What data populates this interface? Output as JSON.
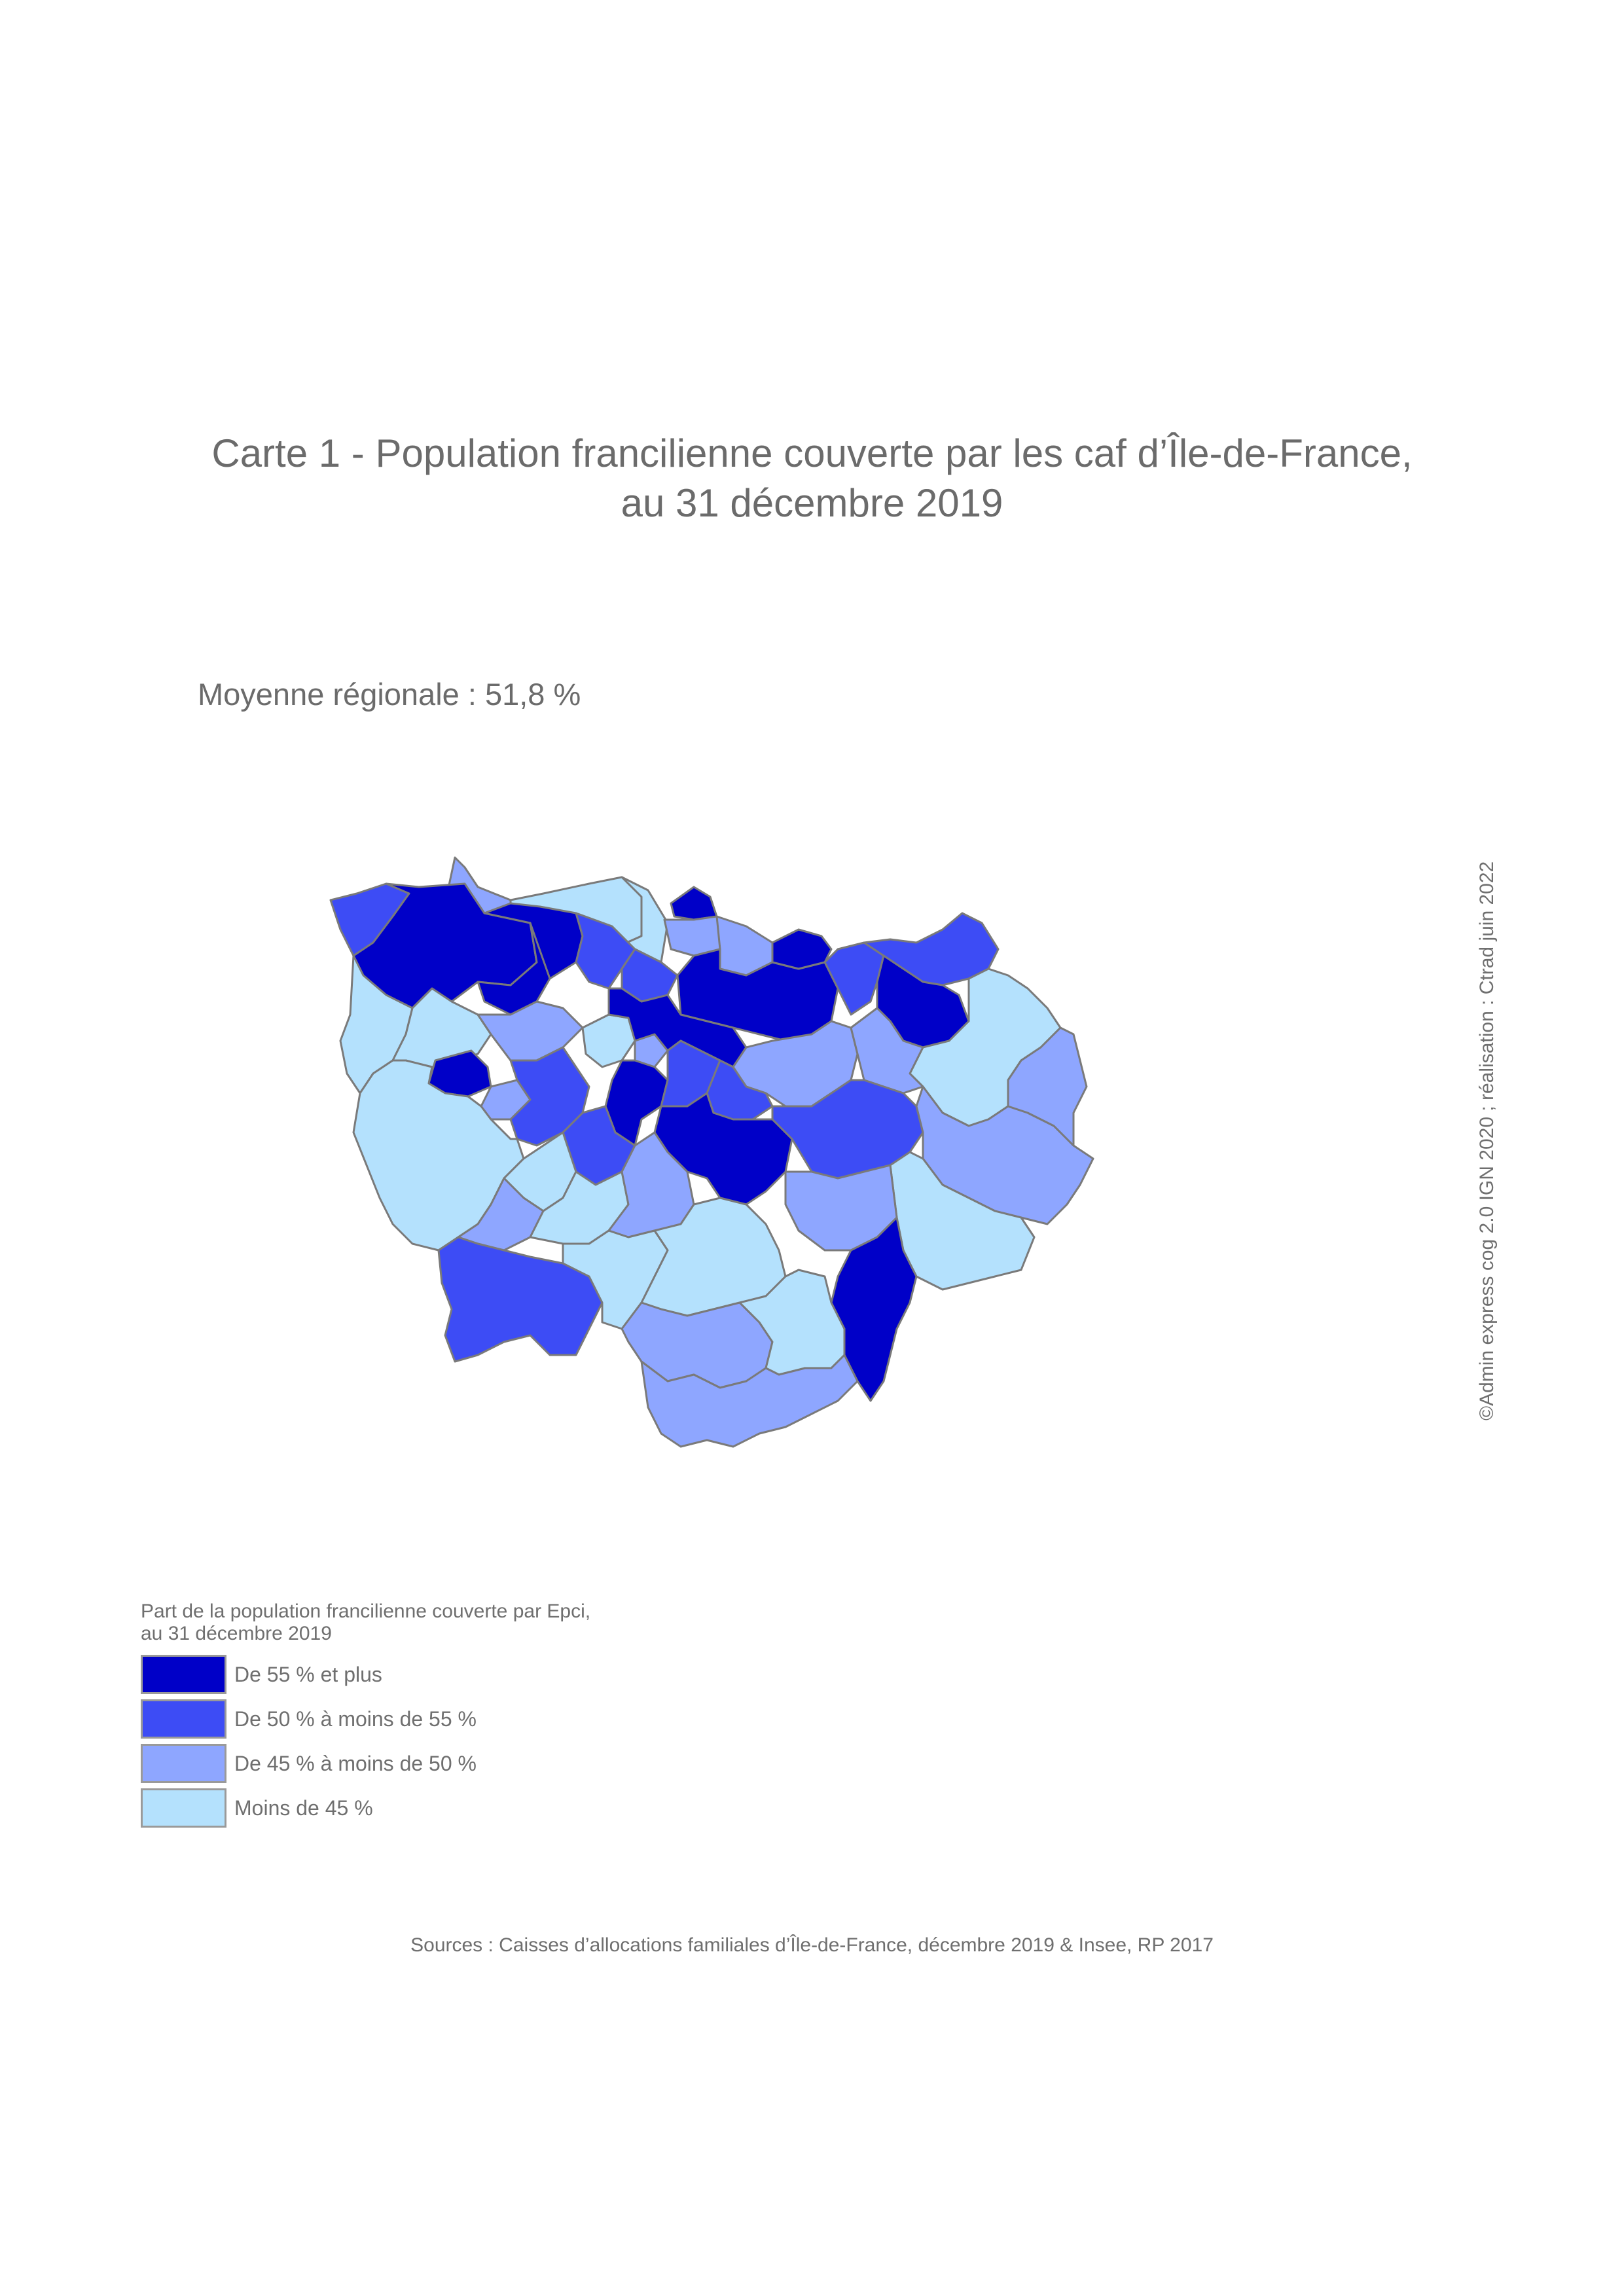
{
  "title": {
    "line1": "Carte 1 - Population francilienne couverte par les caf d’Île-de-France,",
    "line2": "au 31 décembre 2019"
  },
  "subtitle": "Moyenne régionale : 51,8 %",
  "credit": "©Admin express cog 2.0 IGN 2020 ; réalisation : Ctrad juin 2022",
  "legend": {
    "title_line1": "Part de la population francilienne couverte par Epci,",
    "title_line2": "au 31 décembre 2019",
    "items": [
      {
        "label": "De 55 % et plus",
        "color": "#0000c8"
      },
      {
        "label": "De 50 % à moins de 55 %",
        "color": "#3d4cf5"
      },
      {
        "label": "De 45 % à moins de 50 %",
        "color": "#8ea6ff"
      },
      {
        "label": "Moins de 45 %",
        "color": "#b4e1fd"
      }
    ]
  },
  "sources": "Sources : Caisses d’allocations familiales d’Île-de-France, décembre 2019 & Insee, RP 2017",
  "map": {
    "region": "Île-de-France",
    "classes": {
      "c1": "De 55 % et plus",
      "c2": "De 50 % à moins de 55 %",
      "c3": "De 45 % à moins de 50 %",
      "c4": "Moins de 45 %"
    }
  }
}
